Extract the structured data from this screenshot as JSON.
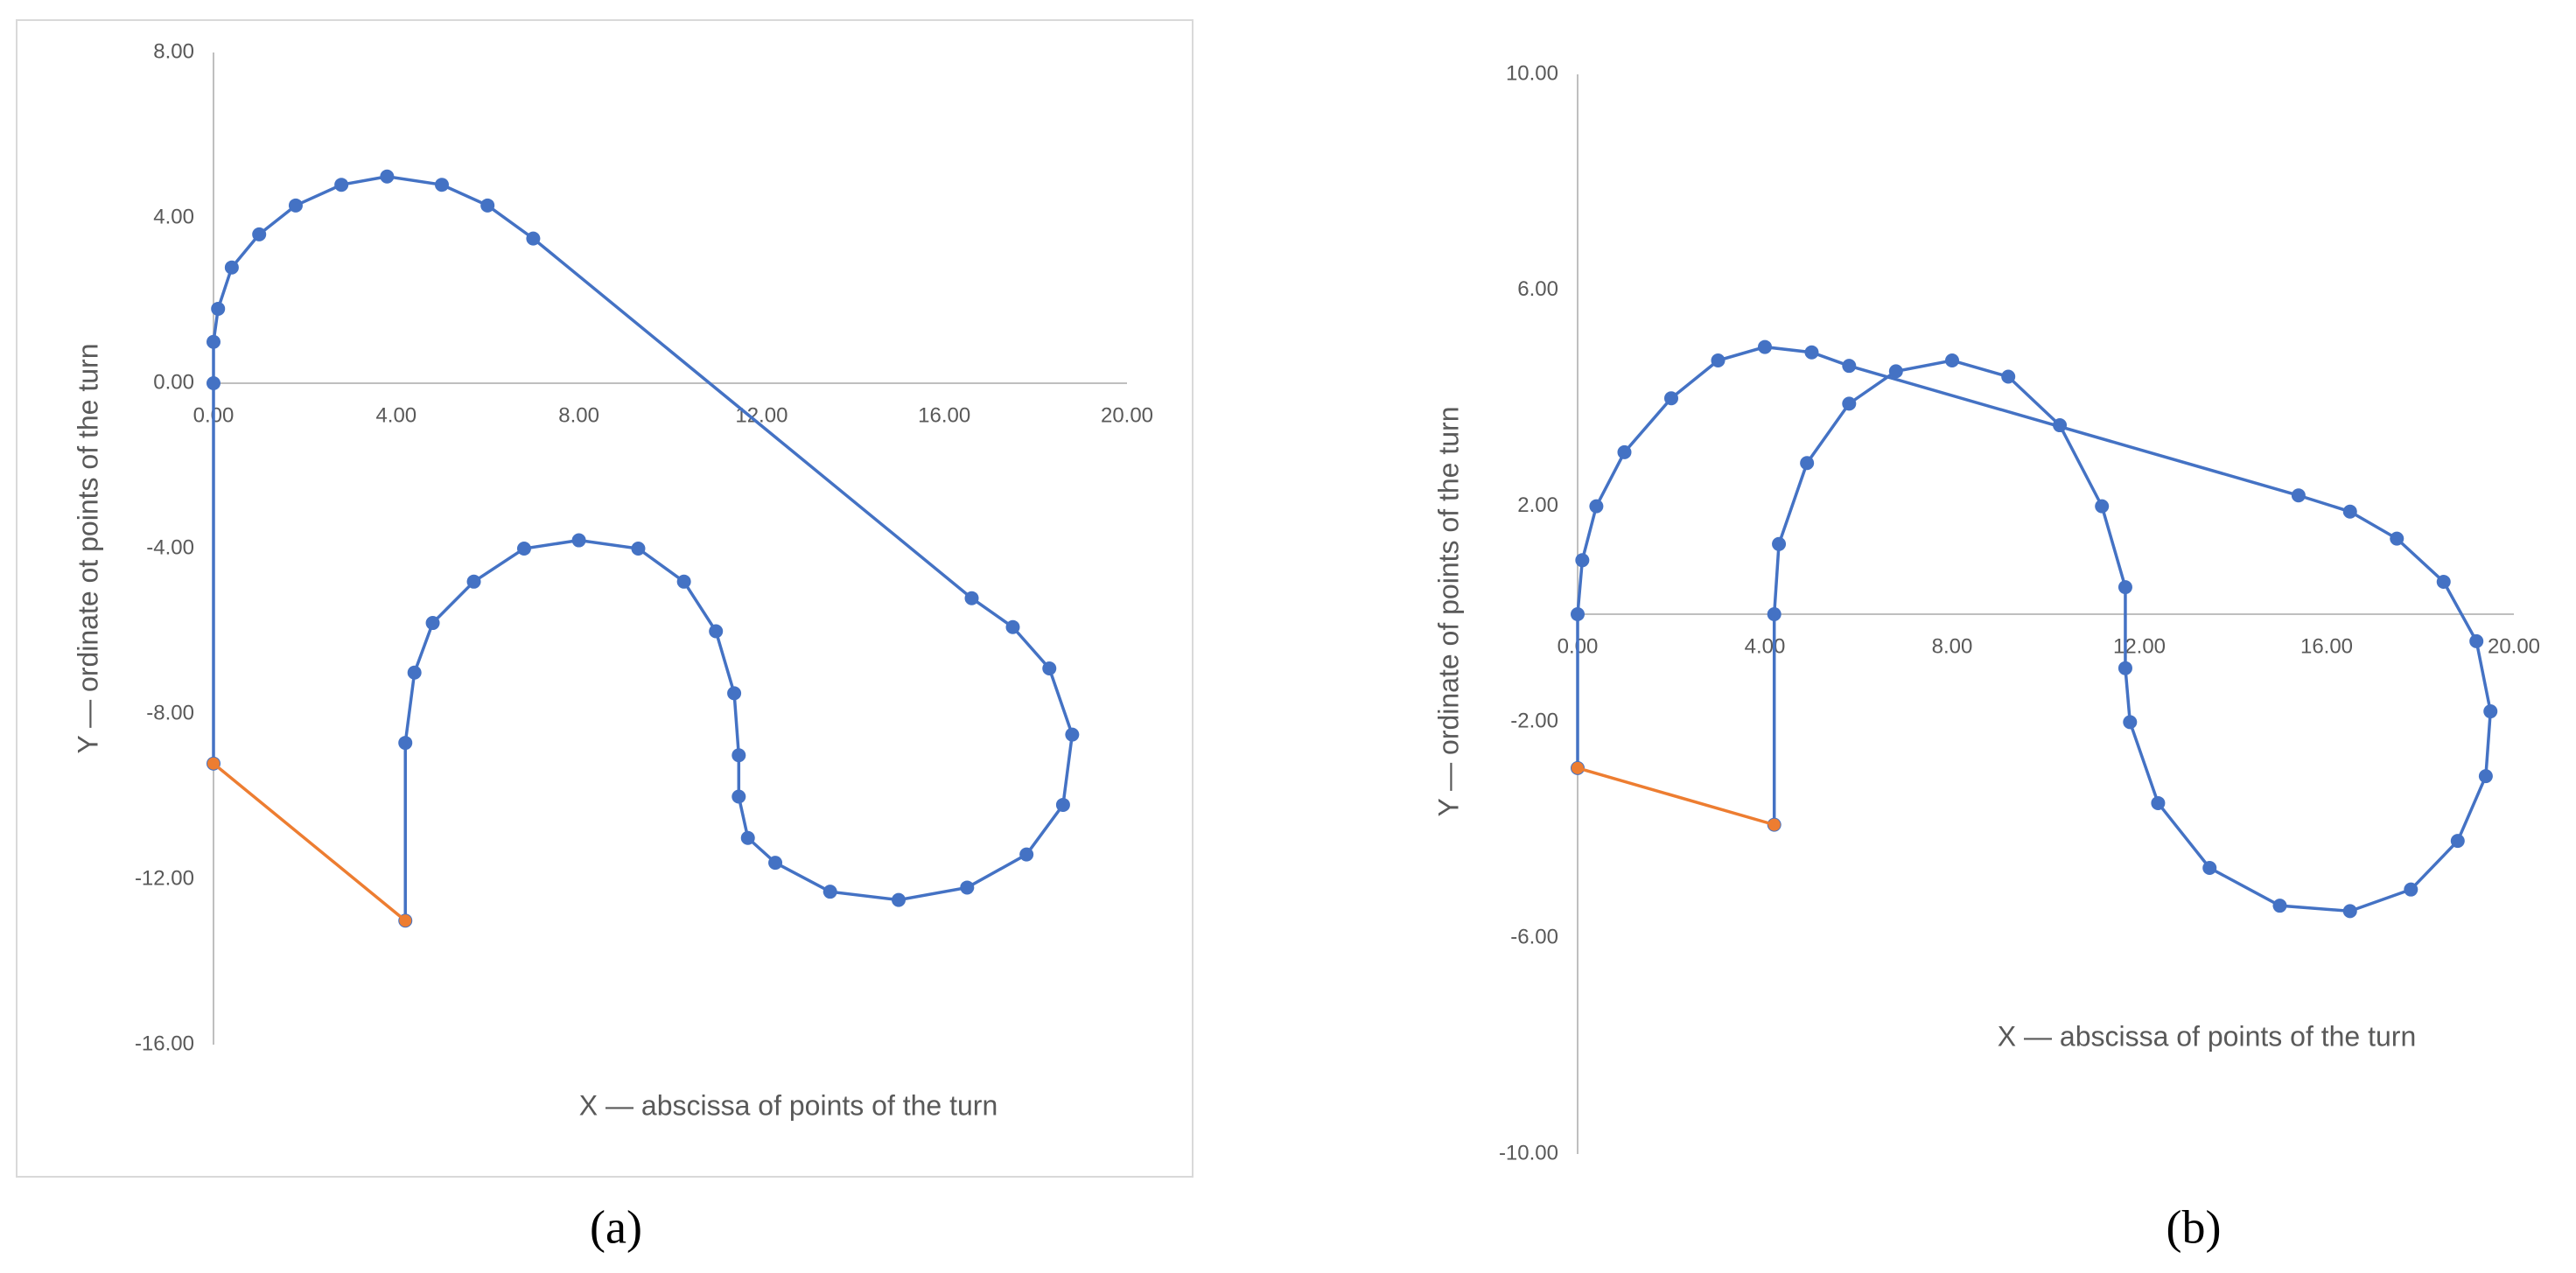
{
  "chart_data": [
    {
      "type": "scatter",
      "caption": "(a)",
      "x_label": "X — abscissa of points of the turn",
      "y_label": "Y — ordinate ot points of the turn",
      "xlim": [
        0,
        20
      ],
      "ylim": [
        -16,
        8
      ],
      "xticks": [
        {
          "value": 0,
          "label": "0.00"
        },
        {
          "value": 4,
          "label": "4.00"
        },
        {
          "value": 8,
          "label": "8.00"
        },
        {
          "value": 12,
          "label": "12.00"
        },
        {
          "value": 16,
          "label": "16.00"
        },
        {
          "value": 20,
          "label": "20.00"
        }
      ],
      "yticks": [
        {
          "value": -16,
          "label": "-16.00"
        },
        {
          "value": -12,
          "label": "-12.00"
        },
        {
          "value": -8,
          "label": "-8.00"
        },
        {
          "value": -4,
          "label": "-4.00"
        },
        {
          "value": 0,
          "label": "0.00"
        },
        {
          "value": 4,
          "label": "4.00"
        },
        {
          "value": 8,
          "label": "8.00"
        }
      ],
      "series": [
        {
          "color": "#4472c4",
          "x": [
            0,
            0,
            0,
            0.1,
            0.4,
            1,
            1.8,
            2.8,
            3.8,
            5,
            6,
            7,
            16.6,
            17.5,
            18.3,
            18.8,
            18.6,
            17.8,
            16.5,
            15,
            13.5,
            12.3,
            11.7,
            11.5,
            11.5,
            11.4,
            11,
            10.3,
            9.3,
            8,
            6.8,
            5.7,
            4.8,
            4.4,
            4.2,
            4.2
          ],
          "values": [
            -9.2,
            0,
            1,
            1.8,
            2.8,
            3.6,
            4.3,
            4.8,
            5,
            4.8,
            4.3,
            3.5,
            -5.2,
            -5.9,
            -6.9,
            -8.5,
            -10.2,
            -11.4,
            -12.2,
            -12.5,
            -12.3,
            -11.6,
            -11,
            -10,
            -9,
            -7.5,
            -6,
            -4.8,
            -4,
            -3.8,
            -4,
            -4.8,
            -5.8,
            -7,
            -8.7,
            -13
          ]
        },
        {
          "color": "#ed7d31",
          "x": [
            0,
            4.2
          ],
          "values": [
            -9.2,
            -13
          ]
        }
      ]
    },
    {
      "type": "scatter",
      "caption": "(b)",
      "x_label": "X — abscissa of points of the turn",
      "y_label": "Y — ordinate of points of the turn",
      "xlim": [
        0,
        20
      ],
      "ylim": [
        -10,
        10
      ],
      "xticks": [
        {
          "value": 0,
          "label": "0.00"
        },
        {
          "value": 4,
          "label": "4.00"
        },
        {
          "value": 8,
          "label": "8.00"
        },
        {
          "value": 12,
          "label": "12.00"
        },
        {
          "value": 16,
          "label": "16.00"
        },
        {
          "value": 20,
          "label": "20.00"
        }
      ],
      "yticks": [
        {
          "value": -10,
          "label": "-10.00"
        },
        {
          "value": -6,
          "label": "-6.00"
        },
        {
          "value": -2,
          "label": "-2.00"
        },
        {
          "value": 2,
          "label": "2.00"
        },
        {
          "value": 6,
          "label": "6.00"
        },
        {
          "value": 10,
          "label": "10.00"
        }
      ],
      "series": [
        {
          "color": "#4472c4",
          "x": [
            0,
            0,
            0.1,
            0.4,
            1,
            2,
            3,
            4,
            5,
            5.8,
            15.4,
            16.5,
            17.5,
            18.5,
            19.2,
            19.5,
            19.4,
            18.8,
            17.8,
            16.5,
            15,
            13.5,
            12.4,
            11.8,
            11.7,
            11.7,
            11.2,
            10.3,
            9.2,
            8,
            6.8,
            5.8,
            4.9,
            4.3,
            4.2,
            4.2
          ],
          "values": [
            -2.85,
            0,
            1,
            2,
            3,
            4,
            4.7,
            4.95,
            4.85,
            4.6,
            2.2,
            1.9,
            1.4,
            0.6,
            -0.5,
            -1.8,
            -3,
            -4.2,
            -5.1,
            -5.5,
            -5.4,
            -4.7,
            -3.5,
            -2,
            -1,
            0.5,
            2,
            3.5,
            4.4,
            4.7,
            4.5,
            3.9,
            2.8,
            1.3,
            0,
            -3.9
          ]
        },
        {
          "color": "#ed7d31",
          "x": [
            0,
            4.2
          ],
          "values": [
            -2.85,
            -3.9
          ]
        }
      ]
    }
  ]
}
